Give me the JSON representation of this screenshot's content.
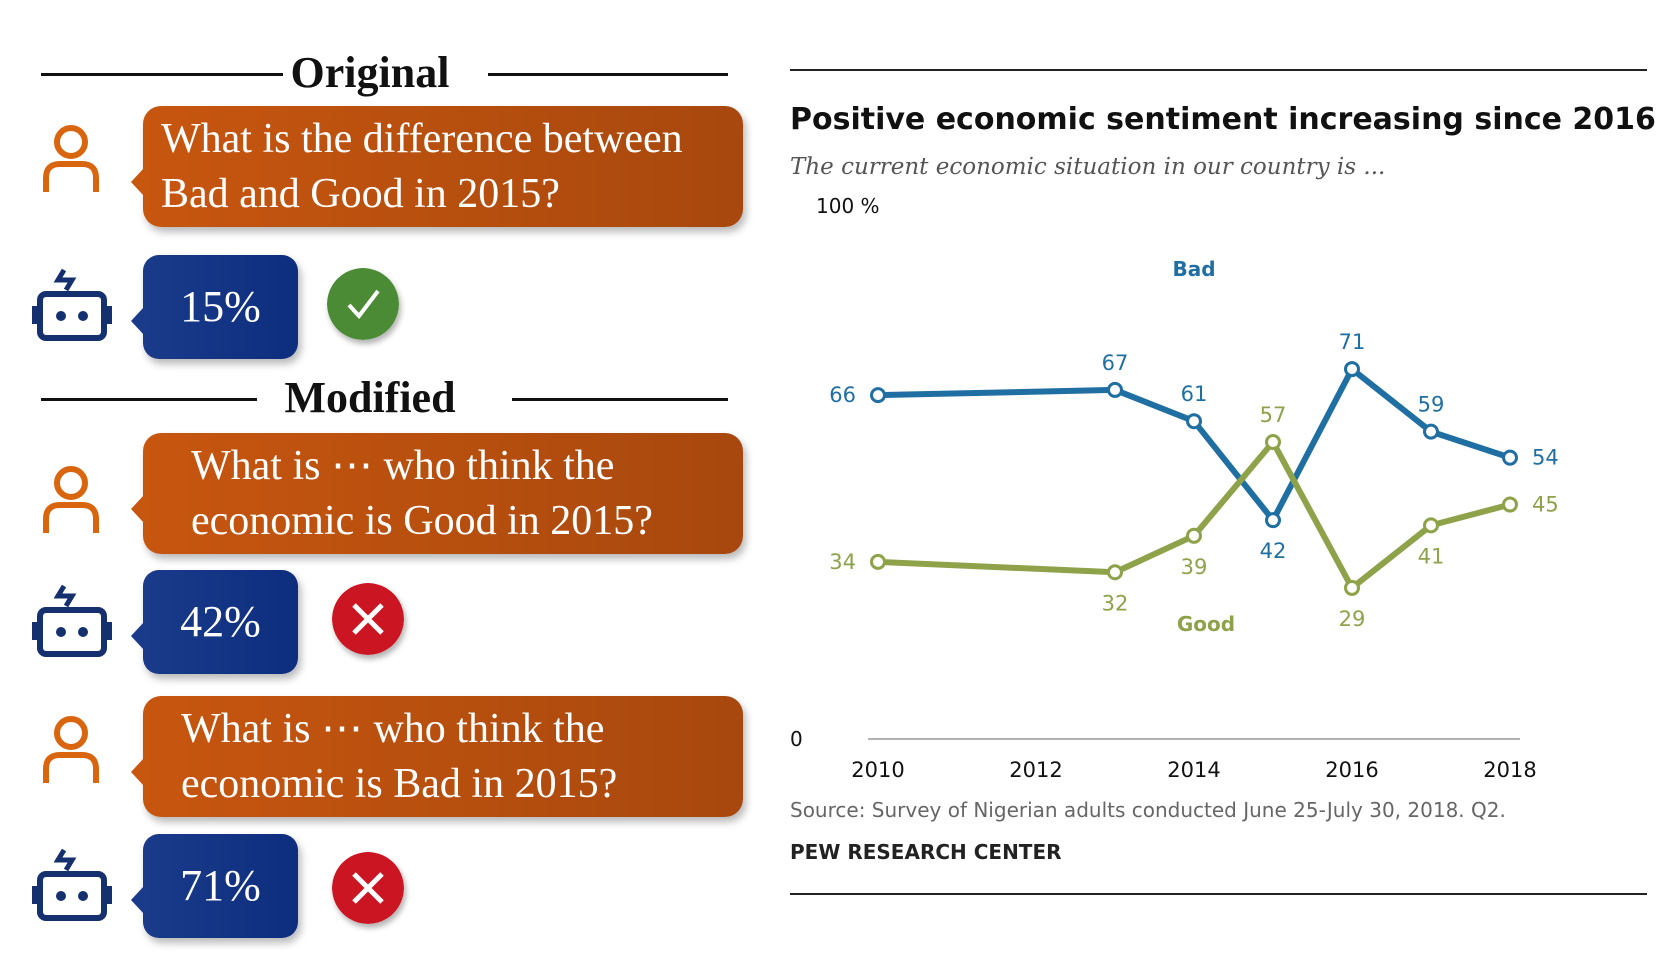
{
  "sections": {
    "original": "Original",
    "modified": "Modified"
  },
  "original": {
    "question": [
      "What is the difference between",
      "Bad and Good in 2015?"
    ],
    "answer": "15%",
    "result": "correct"
  },
  "modified": [
    {
      "question": [
        "What is ⋯ who think the",
        "economic is Good in 2015?"
      ],
      "answer": "42%",
      "result": "wrong"
    },
    {
      "question": [
        "What is ⋯ who think  the",
        "economic is Bad in 2015?"
      ],
      "answer": "71%",
      "result": "wrong"
    }
  ],
  "icons": {
    "user": "user-icon",
    "robot": "robot-icon",
    "correct": "check-icon",
    "wrong": "cross-icon"
  },
  "colors": {
    "question": "#c7560f",
    "answer": "#1a3a8a",
    "bad": "#1f6fa3",
    "good": "#8ea24a",
    "correct": "#4b8b35",
    "wrong": "#cc1522"
  },
  "chart_data": {
    "type": "line",
    "title": "Positive economic sentiment increasing since 2016",
    "subtitle": "The current economic situation in our country is ...",
    "ylabel_top": "100 %",
    "y_zero": "0",
    "ylim": [
      0,
      100
    ],
    "x": [
      2010,
      2013,
      2014,
      2015,
      2016,
      2017,
      2018
    ],
    "x_ticks": [
      "2010",
      "2012",
      "2014",
      "2016",
      "2018"
    ],
    "series": [
      {
        "name": "Bad",
        "values": [
          66,
          67,
          61,
          42,
          71,
          59,
          54
        ]
      },
      {
        "name": "Good",
        "values": [
          34,
          32,
          39,
          57,
          29,
          41,
          45
        ]
      }
    ],
    "source": "Source: Survey of Nigerian adults conducted June 25-July 30, 2018. Q2.",
    "org": "PEW RESEARCH CENTER"
  }
}
